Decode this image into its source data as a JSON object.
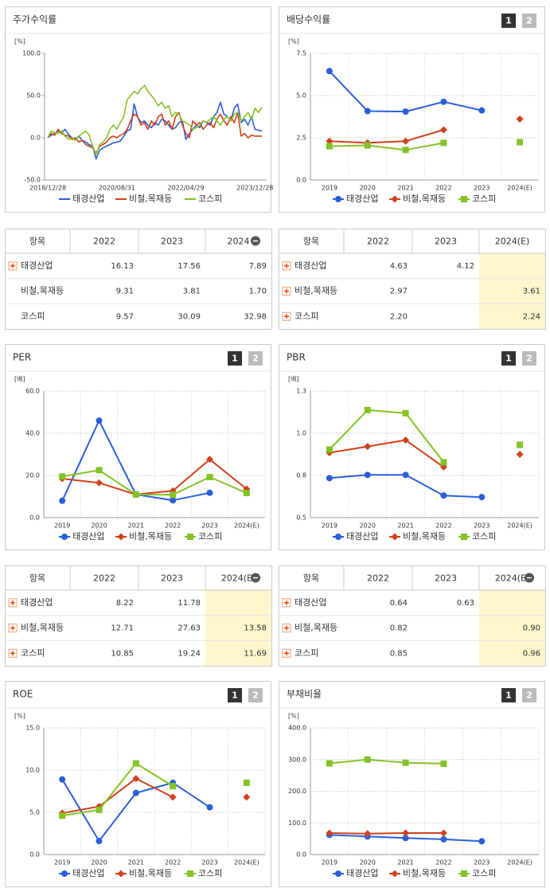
{
  "chart_data": [
    {
      "type": "line",
      "title": "주가수익률",
      "unit": "[%]",
      "categories": [
        "2018/12/28",
        null,
        null,
        null,
        null,
        null,
        null,
        null,
        null,
        null,
        null,
        null,
        null,
        null,
        null,
        null,
        null,
        null,
        null,
        null,
        "2020/08/31",
        null,
        null,
        null,
        null,
        null,
        null,
        null,
        null,
        null,
        null,
        null,
        null,
        null,
        null,
        null,
        null,
        null,
        null,
        null,
        "2022/04/29",
        null,
        null,
        null,
        null,
        null,
        null,
        null,
        null,
        null,
        null,
        null,
        null,
        null,
        null,
        null,
        null,
        null,
        null,
        null,
        "2023/12/28",
        null,
        null
      ],
      "series": [
        {
          "name": "태경산업",
          "color": "#2b5fd9",
          "values": [
            0,
            3,
            5,
            8,
            6,
            10,
            4,
            0,
            -2,
            2,
            -3,
            -5,
            -8,
            -10,
            -25,
            -15,
            -12,
            -10,
            -8,
            -6,
            -5,
            -4,
            2,
            8,
            10,
            40,
            25,
            18,
            20,
            15,
            12,
            18,
            15,
            22,
            20,
            15,
            10,
            12,
            18,
            20,
            -2,
            5,
            10,
            15,
            12,
            20,
            18,
            15,
            25,
            30,
            42,
            28,
            25,
            20,
            35,
            40,
            18,
            22,
            15,
            25,
            10,
            9,
            8
          ]
        },
        {
          "name": "비철,목재등",
          "color": "#d2401c",
          "values": [
            0,
            5,
            3,
            10,
            5,
            3,
            2,
            -2,
            0,
            -5,
            -3,
            -8,
            -10,
            -12,
            -18,
            -10,
            -8,
            -5,
            0,
            2,
            0,
            3,
            5,
            10,
            20,
            28,
            25,
            15,
            18,
            10,
            20,
            15,
            25,
            28,
            15,
            20,
            10,
            25,
            30,
            15,
            5,
            0,
            20,
            15,
            18,
            10,
            15,
            18,
            12,
            22,
            28,
            20,
            15,
            25,
            18,
            30,
            2,
            5,
            0,
            3,
            2,
            2,
            2
          ]
        },
        {
          "name": "코스피",
          "color": "#85c226",
          "values": [
            0,
            8,
            6,
            5,
            8,
            2,
            -2,
            0,
            -3,
            2,
            5,
            8,
            3,
            -10,
            -20,
            -8,
            -5,
            0,
            10,
            15,
            10,
            18,
            25,
            45,
            50,
            55,
            52,
            58,
            62,
            55,
            50,
            45,
            38,
            42,
            35,
            38,
            25,
            30,
            28,
            20,
            18,
            15,
            10,
            12,
            15,
            20,
            18,
            22,
            25,
            20,
            15,
            22,
            25,
            20,
            28,
            30,
            20,
            25,
            30,
            22,
            35,
            30,
            36
          ]
        }
      ],
      "ylim": [
        -50,
        100
      ],
      "yticks": [
        {
          "value": -50,
          "label": "-50.0"
        },
        {
          "value": 0,
          "label": "0.0"
        },
        {
          "value": 50,
          "label": "50.0"
        },
        {
          "value": 100,
          "label": "100.0"
        }
      ],
      "grid": false,
      "markers": false
    },
    {
      "type": "line",
      "title": "배당수익률",
      "tabs": [
        "1",
        "2"
      ],
      "unit": "[%]",
      "categories": [
        "2019",
        "2020",
        "2021",
        "2022",
        "2023",
        "2024(E)"
      ],
      "series": [
        {
          "name": "태경산업",
          "color": "#2b5fd9",
          "marker": "circle",
          "values": [
            6.45,
            4.08,
            4.05,
            4.63,
            4.12,
            null
          ]
        },
        {
          "name": "비철,목재등",
          "color": "#d2401c",
          "marker": "diamond",
          "values": [
            2.3,
            2.2,
            2.3,
            2.97,
            null,
            3.61
          ]
        },
        {
          "name": "코스피",
          "color": "#85c226",
          "marker": "square",
          "values": [
            2.0,
            2.05,
            1.78,
            2.2,
            null,
            2.24
          ]
        }
      ],
      "ylim": [
        0,
        7.5
      ],
      "yticks": [
        {
          "value": 0,
          "label": "0.0"
        },
        2.5,
        {
          "value": 5,
          "label": "5.0"
        },
        7.5
      ],
      "grid": true,
      "markers": true
    },
    {
      "type": "line",
      "title": "PER",
      "tabs": [
        "1",
        "2"
      ],
      "unit": "[배]",
      "categories": [
        "2019",
        "2020",
        "2021",
        "2022",
        "2023",
        "2024(E)"
      ],
      "series": [
        {
          "name": "태경산업",
          "color": "#2b5fd9",
          "marker": "circle",
          "values": [
            8,
            46,
            11,
            8.22,
            11.78,
            null
          ]
        },
        {
          "name": "비철,목재등",
          "color": "#d2401c",
          "marker": "diamond",
          "values": [
            18.5,
            16.5,
            11,
            12.71,
            27.63,
            13.58
          ]
        },
        {
          "name": "코스피",
          "color": "#85c226",
          "marker": "square",
          "values": [
            19.5,
            22.5,
            11,
            10.85,
            19.24,
            11.69
          ]
        }
      ],
      "ylim": [
        0,
        60
      ],
      "yticks": [
        {
          "value": 0,
          "label": "0.0"
        },
        {
          "value": 20,
          "label": "20.0"
        },
        {
          "value": 40,
          "label": "40.0"
        },
        {
          "value": 60,
          "label": "60.0"
        }
      ],
      "grid": true,
      "markers": true
    },
    {
      "type": "line",
      "title": "PBR",
      "tabs": [
        "1",
        "2"
      ],
      "unit": "[배]",
      "categories": [
        "2019",
        "2020",
        "2021",
        "2022",
        "2023",
        "2024(E)"
      ],
      "series": [
        {
          "name": "태경산업",
          "color": "#2b5fd9",
          "marker": "circle",
          "values": [
            0.75,
            0.77,
            0.77,
            0.64,
            0.63,
            null
          ]
        },
        {
          "name": "비철,목재등",
          "color": "#d2401c",
          "marker": "diamond",
          "values": [
            0.91,
            0.95,
            0.99,
            0.82,
            null,
            0.9
          ]
        },
        {
          "name": "코스피",
          "color": "#85c226",
          "marker": "square",
          "values": [
            0.93,
            1.18,
            1.16,
            0.85,
            null,
            0.96
          ]
        }
      ],
      "ylim": [
        0.5,
        1.3
      ],
      "yticks": [
        0.5,
        {
          "value": 0.7667,
          "label": "0.8"
        },
        {
          "value": 1.0333,
          "label": "1.0"
        },
        1.3
      ],
      "grid": true,
      "markers": true
    },
    {
      "type": "line",
      "title": "ROE",
      "tabs": [
        "1",
        "2"
      ],
      "unit": "[%]",
      "categories": [
        "2019",
        "2020",
        "2021",
        "2022",
        "2023",
        "2024(E)"
      ],
      "series": [
        {
          "name": "태경산업",
          "color": "#2b5fd9",
          "marker": "circle",
          "values": [
            8.9,
            1.6,
            7.3,
            8.5,
            5.6,
            null
          ]
        },
        {
          "name": "비철,목재등",
          "color": "#d2401c",
          "marker": "diamond",
          "values": [
            4.9,
            5.7,
            9.0,
            6.8,
            null,
            6.8
          ]
        },
        {
          "name": "코스피",
          "color": "#85c226",
          "marker": "square",
          "values": [
            4.6,
            5.3,
            10.8,
            8.1,
            null,
            8.5
          ]
        }
      ],
      "ylim": [
        0,
        15
      ],
      "yticks": [
        {
          "value": 0,
          "label": "0.0"
        },
        {
          "value": 5,
          "label": "5.0"
        },
        {
          "value": 10,
          "label": "10.0"
        },
        {
          "value": 15,
          "label": "15.0"
        }
      ],
      "grid": true,
      "markers": true
    },
    {
      "type": "line",
      "title": "부채비율",
      "tabs": [
        "1",
        "2"
      ],
      "unit": "[%]",
      "categories": [
        "2019",
        "2020",
        "2021",
        "2022",
        "2023",
        "2024(E)"
      ],
      "series": [
        {
          "name": "태경산업",
          "color": "#2b5fd9",
          "marker": "circle",
          "values": [
            62,
            57,
            52,
            48,
            42,
            null
          ]
        },
        {
          "name": "비철,목재등",
          "color": "#d2401c",
          "marker": "diamond",
          "values": [
            68,
            66,
            68,
            68,
            null,
            null
          ]
        },
        {
          "name": "코스피",
          "color": "#85c226",
          "marker": "square",
          "values": [
            288,
            300,
            290,
            287,
            null,
            null
          ]
        }
      ],
      "ylim": [
        0,
        400
      ],
      "yticks": [
        {
          "value": 0,
          "label": "0.0"
        },
        {
          "value": 100,
          "label": "100.0"
        },
        {
          "value": 200,
          "label": "200.0"
        },
        {
          "value": 300,
          "label": "300.0"
        },
        {
          "value": 400,
          "label": "400.0"
        }
      ],
      "grid": true,
      "markers": true
    }
  ],
  "tables": [
    {
      "header": [
        "항목",
        "2022",
        "2023",
        "2024"
      ],
      "rows": [
        [
          "태경산업",
          "16.13",
          "17.56",
          "7.89"
        ],
        [
          "비철,목재등",
          "9.31",
          "3.81",
          "1.70"
        ],
        [
          "코스피",
          "9.57",
          "30.09",
          "32.98"
        ]
      ]
    },
    {
      "header": [
        "항목",
        "2022",
        "2023",
        "2024(E)"
      ],
      "rows": [
        [
          "태경산업",
          "4.63",
          "4.12",
          null
        ],
        [
          "비철,목재등",
          "2.97",
          null,
          "3.61"
        ],
        [
          "코스피",
          "2.20",
          null,
          "2.24"
        ]
      ]
    },
    {
      "header": [
        "항목",
        "2022",
        "2023",
        "2024(E)"
      ],
      "rows": [
        [
          "태경산업",
          "8.22",
          "11.78",
          null
        ],
        [
          "비철,목재등",
          "12.71",
          "27.63",
          "13.58"
        ],
        [
          "코스피",
          "10.85",
          "19.24",
          "11.69"
        ]
      ]
    },
    {
      "header": [
        "항목",
        "2022",
        "2023",
        "2024(E)"
      ],
      "rows": [
        [
          "태경산업",
          "0.64",
          "0.63",
          null
        ],
        [
          "비철,목재등",
          "0.82",
          null,
          "0.90"
        ],
        [
          "코스피",
          "0.85",
          null,
          "0.96"
        ]
      ]
    }
  ]
}
